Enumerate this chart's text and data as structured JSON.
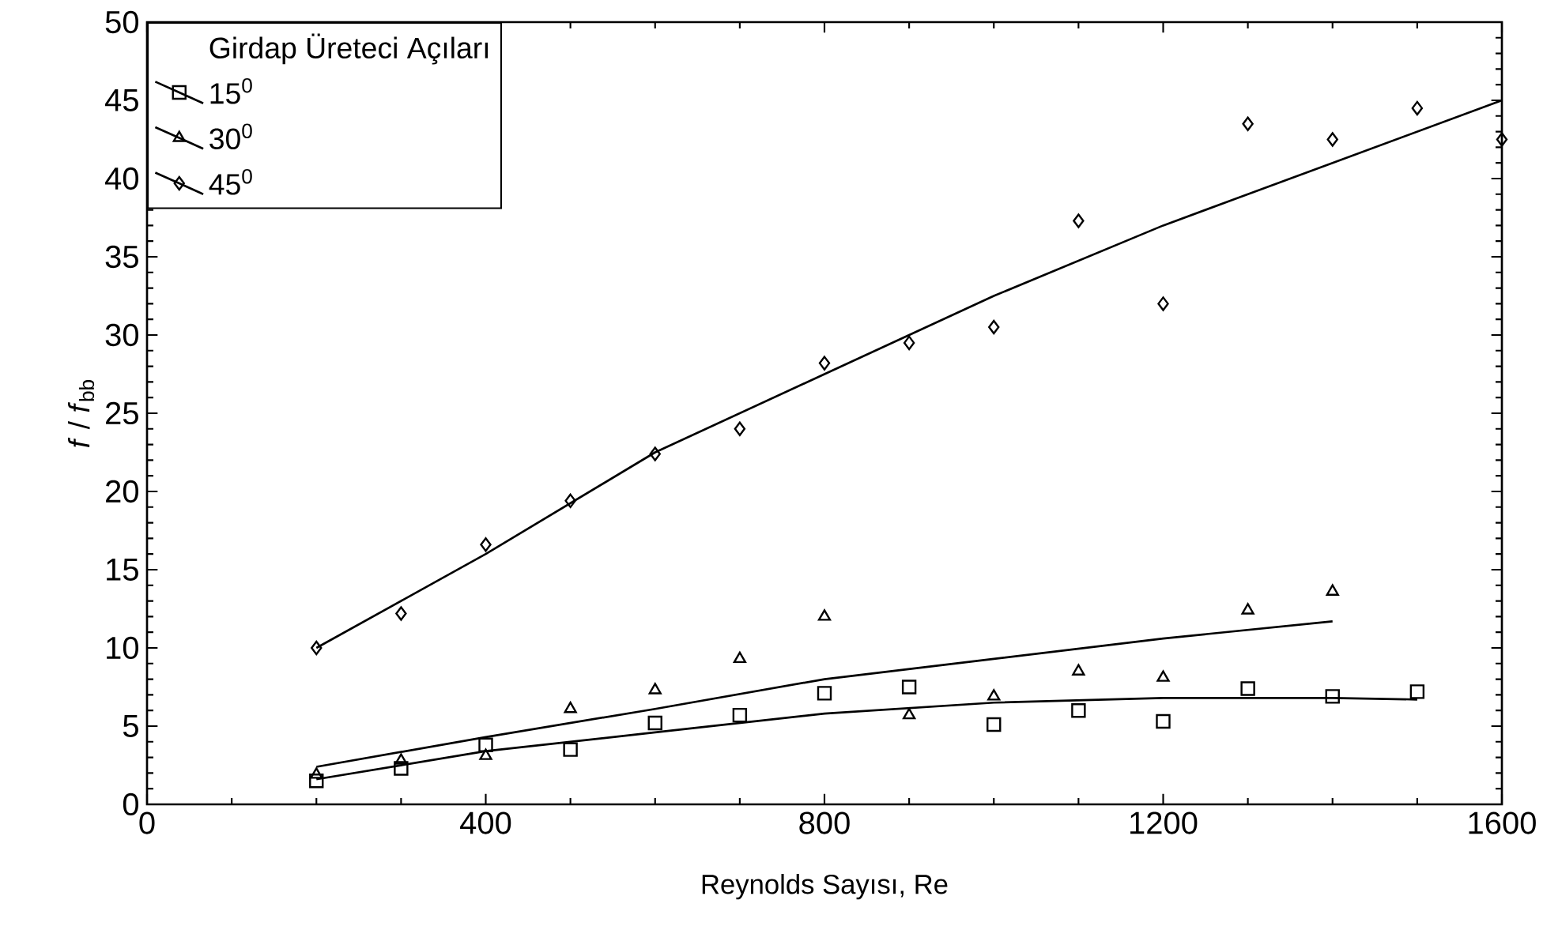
{
  "chart_data": {
    "type": "scatter",
    "xlabel": "Reynolds Sayısı, Re",
    "ylabel": "*f* / *f*$_{bb}$",
    "legend_title": "Girdap Üreteci Açıları",
    "legend": "top left",
    "xlim": [
      0,
      1600
    ],
    "xticks": [
      0,
      400,
      800,
      1200,
      1600
    ],
    "ylim": [
      0,
      50
    ],
    "yticks": [
      0,
      5,
      10,
      15,
      20,
      25,
      30,
      35,
      40,
      45,
      50
    ],
    "grid": false,
    "series": [
      {
        "name": "15$^{0}$",
        "marker": "square",
        "color": "#000000",
        "x": [
          200,
          300,
          400,
          500,
          600,
          700,
          800,
          900,
          1000,
          1100,
          1200,
          1300,
          1400,
          1500
        ],
        "values": [
          1.5,
          2.3,
          3.8,
          3.5,
          5.2,
          5.7,
          7.1,
          7.5,
          5.1,
          6.0,
          5.3,
          7.4,
          6.9,
          7.2
        ]
      },
      {
        "name": "30$^{0}$",
        "marker": "triangle",
        "color": "#000000",
        "x": [
          200,
          300,
          400,
          500,
          600,
          700,
          800,
          900,
          1000,
          1100,
          1200,
          1300,
          1400
        ],
        "values": [
          1.9,
          2.8,
          3.1,
          6.1,
          7.3,
          9.3,
          12.0,
          5.7,
          6.9,
          8.5,
          8.1,
          12.4,
          13.6
        ]
      },
      {
        "name": "45$^{0}$",
        "marker": "diamond",
        "color": "#000000",
        "x": [
          200,
          300,
          400,
          500,
          600,
          700,
          800,
          900,
          1000,
          1100,
          1200,
          1300,
          1400,
          1500,
          1600
        ],
        "values": [
          10.0,
          12.2,
          16.6,
          19.4,
          22.4,
          24.0,
          28.2,
          29.5,
          30.5,
          37.3,
          32.0,
          43.5,
          42.5,
          44.5,
          42.5
        ]
      },
      {
        "type": "line",
        "color": "#000000",
        "x": [
          200,
          400,
          600,
          800,
          1000,
          1200,
          1400,
          1500
        ],
        "values": [
          1.6,
          3.4,
          4.6,
          5.8,
          6.5,
          6.8,
          6.8,
          6.7
        ]
      },
      {
        "type": "line",
        "color": "#000000",
        "x": [
          200,
          400,
          600,
          800,
          1000,
          1200,
          1400
        ],
        "values": [
          2.4,
          4.3,
          6.1,
          8.0,
          9.3,
          10.6,
          11.7
        ]
      },
      {
        "type": "line",
        "color": "#000000",
        "x": [
          200,
          400,
          600,
          800,
          1000,
          1200,
          1400,
          1600
        ],
        "values": [
          10.0,
          16.0,
          22.5,
          27.5,
          32.5,
          37.0,
          41.0,
          45.0
        ]
      }
    ]
  }
}
